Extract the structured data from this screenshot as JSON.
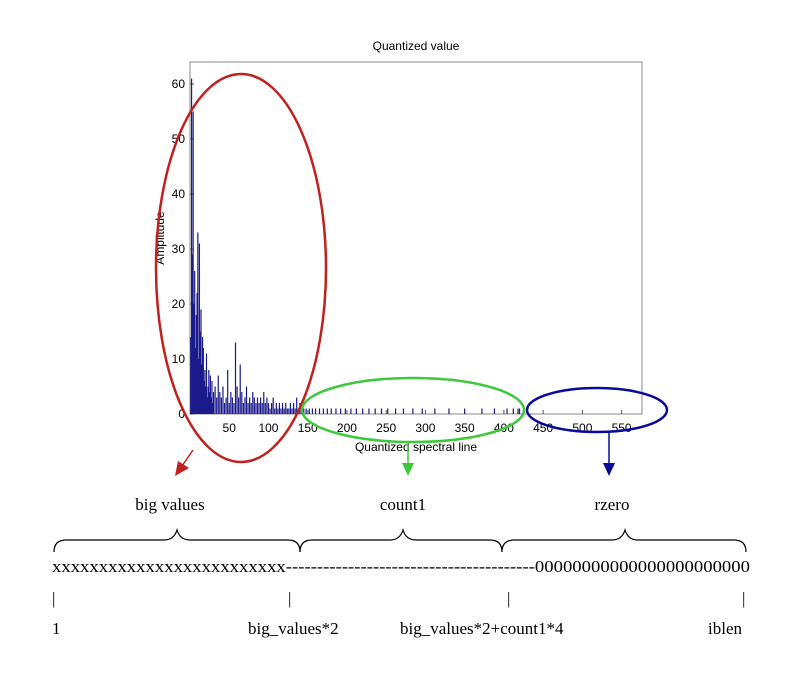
{
  "chart_data": {
    "type": "bar",
    "title": "Quantized value",
    "xlabel": "Quantized spectral line",
    "ylabel": "Amplitude",
    "xlim": [
      0,
      576
    ],
    "ylim": [
      0,
      64
    ],
    "xticks": [
      50,
      100,
      150,
      200,
      250,
      300,
      350,
      400,
      450,
      500,
      550
    ],
    "yticks": [
      0,
      10,
      20,
      30,
      40,
      50,
      60
    ],
    "grid": false,
    "bar_color": "#1a1a8c",
    "bars": [
      [
        1,
        14
      ],
      [
        2,
        61
      ],
      [
        3,
        29
      ],
      [
        4,
        55
      ],
      [
        5,
        20
      ],
      [
        6,
        26
      ],
      [
        7,
        12
      ],
      [
        8,
        18
      ],
      [
        9,
        22
      ],
      [
        10,
        33
      ],
      [
        11,
        10
      ],
      [
        12,
        31
      ],
      [
        13,
        15
      ],
      [
        14,
        19
      ],
      [
        15,
        9
      ],
      [
        16,
        14
      ],
      [
        17,
        12
      ],
      [
        18,
        6
      ],
      [
        19,
        8
      ],
      [
        20,
        5
      ],
      [
        21,
        11
      ],
      [
        22,
        3
      ],
      [
        23,
        5
      ],
      [
        24,
        8
      ],
      [
        25,
        4
      ],
      [
        26,
        7
      ],
      [
        27,
        3
      ],
      [
        28,
        6
      ],
      [
        29,
        2
      ],
      [
        30,
        4
      ],
      [
        32,
        5
      ],
      [
        34,
        3
      ],
      [
        36,
        7
      ],
      [
        38,
        4
      ],
      [
        40,
        3
      ],
      [
        42,
        5
      ],
      [
        44,
        2
      ],
      [
        46,
        3
      ],
      [
        48,
        8
      ],
      [
        50,
        2
      ],
      [
        52,
        4
      ],
      [
        54,
        3
      ],
      [
        56,
        2
      ],
      [
        58,
        13
      ],
      [
        60,
        5
      ],
      [
        62,
        3
      ],
      [
        64,
        9
      ],
      [
        66,
        4
      ],
      [
        68,
        2
      ],
      [
        70,
        3
      ],
      [
        72,
        5
      ],
      [
        74,
        2
      ],
      [
        76,
        3
      ],
      [
        78,
        2
      ],
      [
        80,
        4
      ],
      [
        82,
        3
      ],
      [
        84,
        2
      ],
      [
        86,
        3
      ],
      [
        88,
        2
      ],
      [
        90,
        3
      ],
      [
        92,
        2
      ],
      [
        94,
        4
      ],
      [
        96,
        2
      ],
      [
        98,
        3
      ],
      [
        100,
        2
      ],
      [
        102,
        1
      ],
      [
        104,
        2
      ],
      [
        106,
        3
      ],
      [
        108,
        1
      ],
      [
        110,
        2
      ],
      [
        112,
        1
      ],
      [
        114,
        2
      ],
      [
        116,
        1
      ],
      [
        118,
        2
      ],
      [
        120,
        1
      ],
      [
        122,
        2
      ],
      [
        124,
        1
      ],
      [
        126,
        1
      ],
      [
        128,
        2
      ],
      [
        130,
        1
      ],
      [
        132,
        2
      ],
      [
        134,
        1
      ],
      [
        136,
        3
      ],
      [
        138,
        1
      ],
      [
        140,
        2
      ],
      [
        142,
        1
      ],
      [
        145,
        1
      ],
      [
        148,
        1
      ],
      [
        152,
        1
      ],
      [
        156,
        1
      ],
      [
        160,
        1
      ],
      [
        165,
        1
      ],
      [
        170,
        1
      ],
      [
        175,
        1
      ],
      [
        180,
        1
      ],
      [
        186,
        1
      ],
      [
        192,
        1
      ],
      [
        198,
        1
      ],
      [
        205,
        1
      ],
      [
        212,
        1
      ],
      [
        220,
        1
      ],
      [
        228,
        1
      ],
      [
        236,
        1
      ],
      [
        244,
        1
      ],
      [
        252,
        1
      ],
      [
        262,
        1
      ],
      [
        272,
        1
      ],
      [
        284,
        1
      ],
      [
        296,
        1
      ],
      [
        312,
        1
      ],
      [
        330,
        1
      ],
      [
        350,
        1
      ],
      [
        372,
        1
      ],
      [
        388,
        1
      ],
      [
        404,
        1
      ],
      [
        412,
        1
      ],
      [
        418,
        1
      ],
      [
        420,
        1
      ]
    ]
  },
  "annotations": {
    "regions": [
      {
        "name": "big-values",
        "color": "#c0201e"
      },
      {
        "name": "count1",
        "color": "#3ec83e"
      },
      {
        "name": "rzero",
        "color": "#0a0a9a"
      }
    ],
    "labels": {
      "big_values": "big values",
      "count1": "count1",
      "rzero": "rzero"
    },
    "sequence": {
      "big_part": "xxxxxxxxxxxxxxxxxxxxxxxxx",
      "count1_part": "----------------------------------------",
      "zero_part": "00000000000000000000000"
    },
    "markers": {
      "start": "1",
      "big_end": "big_values*2",
      "count1_end": "big_values*2+count1*4",
      "end": "iblen"
    },
    "tick_mark": "|"
  }
}
